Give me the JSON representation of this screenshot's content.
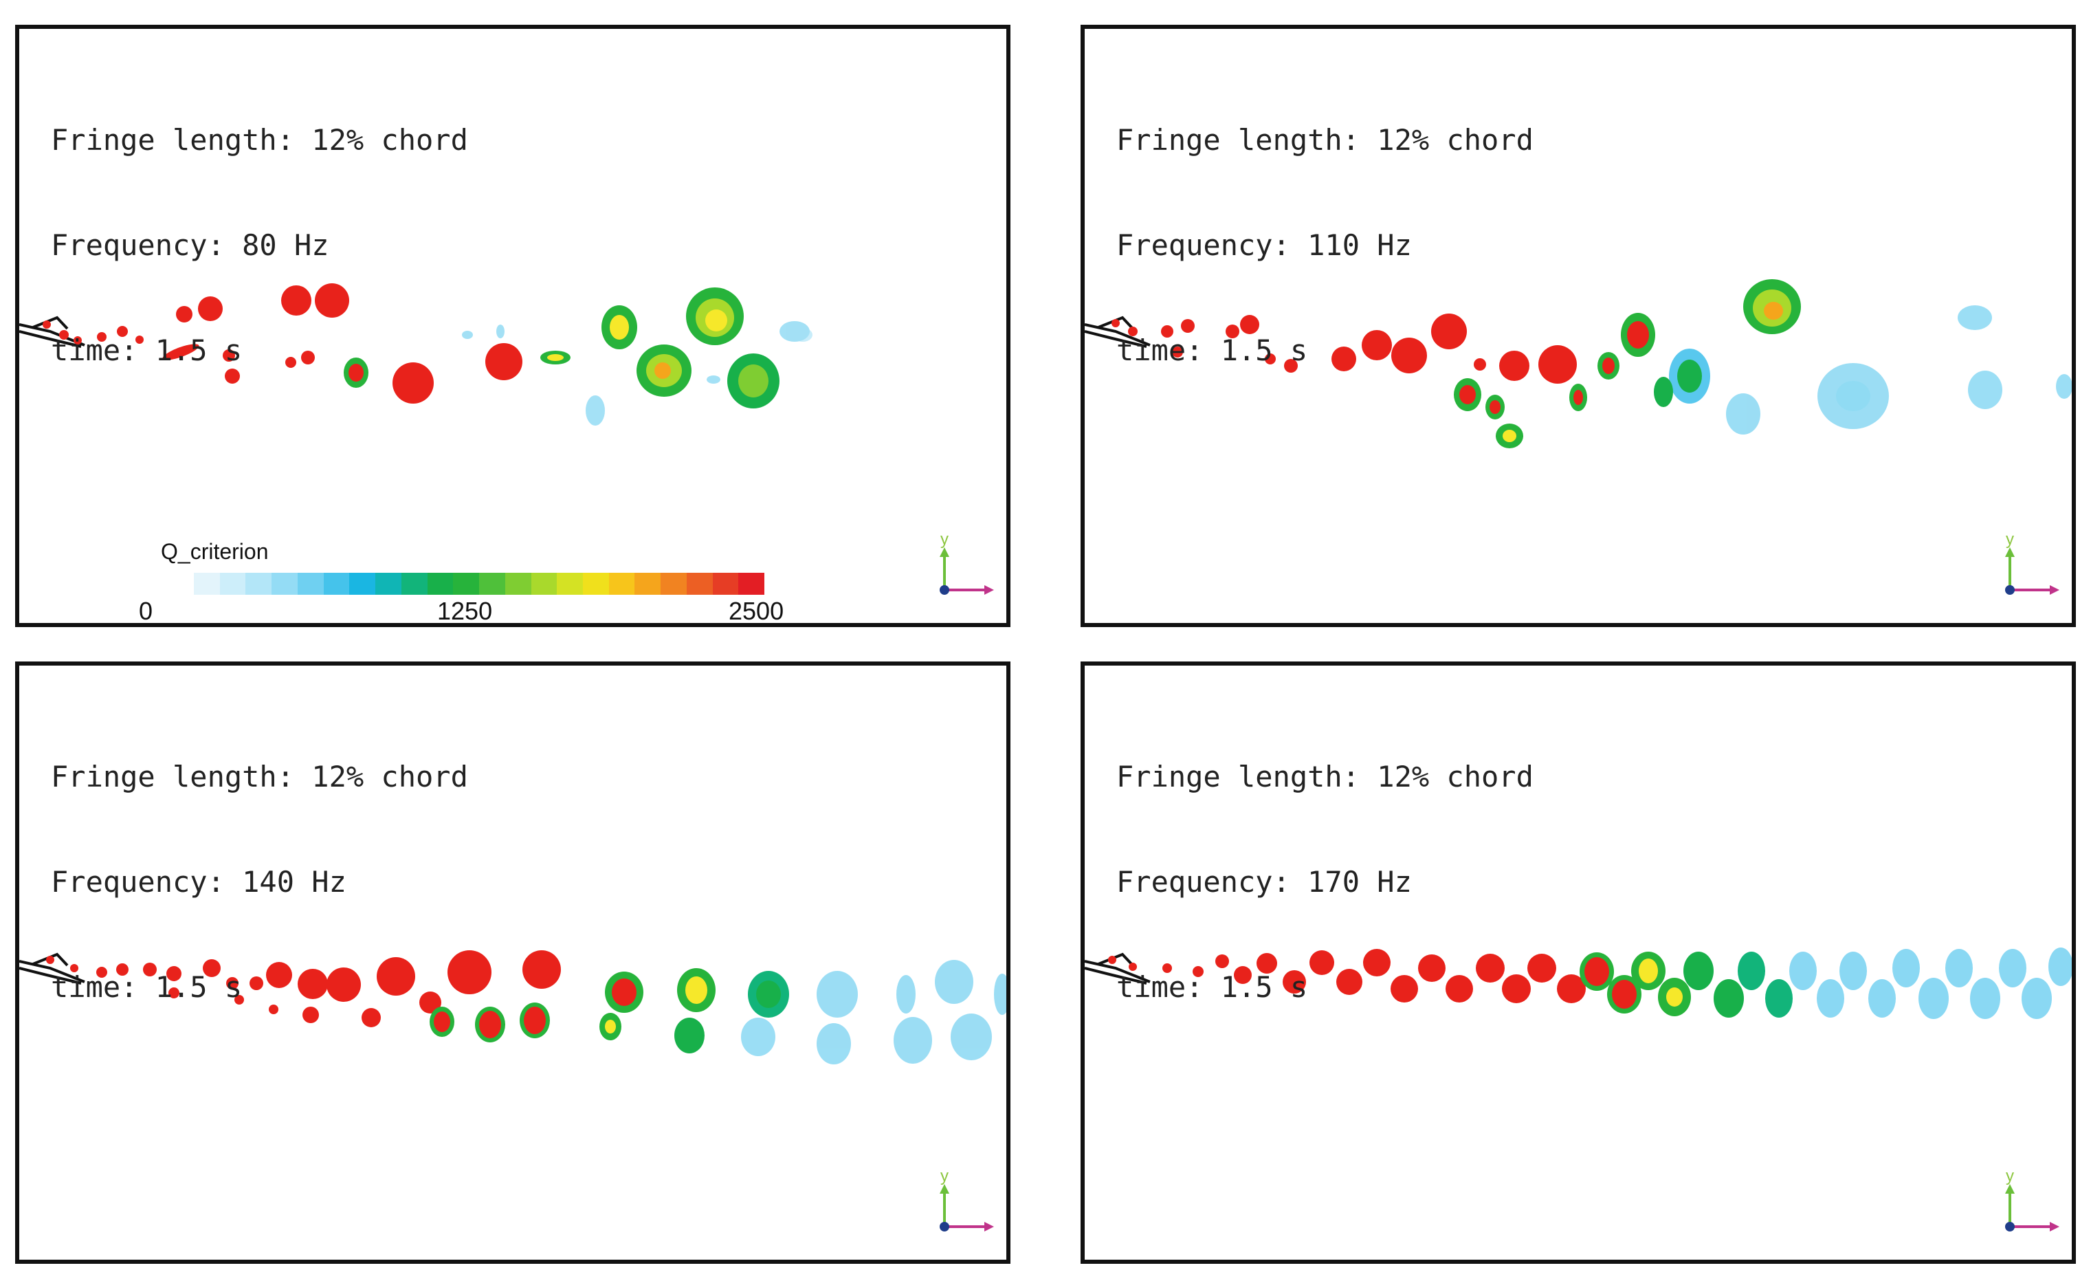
{
  "panels": [
    {
      "fringe": "Fringe length: 12% chord",
      "frequency": "Frequency: 80 Hz",
      "time": "time: 1.5 s"
    },
    {
      "fringe": "Fringe length: 12% chord",
      "frequency": "Frequency: 110 Hz",
      "time": "time: 1.5 s"
    },
    {
      "fringe": "Fringe length: 12% chord",
      "frequency": "Frequency: 140 Hz",
      "time": "time: 1.5 s"
    },
    {
      "fringe": "Fringe length: 12% chord",
      "frequency": "Frequency: 170 Hz",
      "time": "time: 1.5 s"
    }
  ],
  "legend": {
    "title": "Q_criterion",
    "min_label": "0",
    "mid_label": "1250",
    "max_label": "2500",
    "colors": [
      "#e3f4fb",
      "#cdeefa",
      "#b3e6f8",
      "#94dcf5",
      "#6fd0f1",
      "#45c3eb",
      "#1ab6e2",
      "#10b5b5",
      "#12b47a",
      "#18b04a",
      "#27b33b",
      "#4fc03a",
      "#7fcd32",
      "#a9d92c",
      "#d4e224",
      "#f0e01c",
      "#f7c51b",
      "#f5a51c",
      "#f18321",
      "#ec5f24",
      "#e63d25",
      "#e31e24"
    ]
  },
  "axes": {
    "y_label": "y"
  },
  "colors": {
    "red": "#e8221b",
    "green": "#27b33b",
    "cyan": "#59c8ee",
    "yellow": "#f6e82a"
  }
}
